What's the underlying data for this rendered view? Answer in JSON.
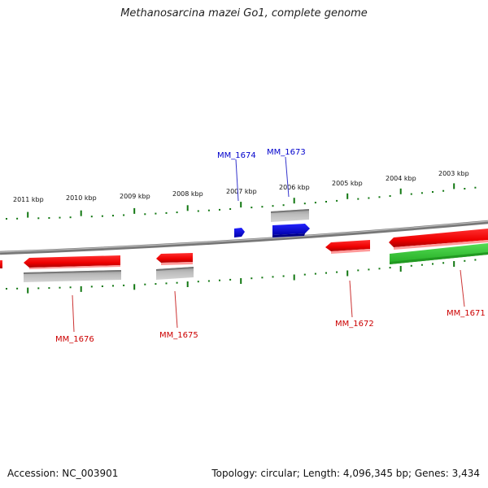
{
  "title": "Methanosarcina mazei Go1, complete genome",
  "footer": {
    "accession": "Accession: NC_003901",
    "summary": "Topology: circular; Length: 4,096,345 bp; Genes: 3,434"
  },
  "colors": {
    "forward_gene": "#ff0000",
    "selected_gene": "#0000ee",
    "rna_gene": "#33cc33",
    "pseudo_gene": "#aaaaaa",
    "backbone": "#888888",
    "ticks": "#117711",
    "label_red": "#cc0000",
    "label_blue": "#0000cc"
  },
  "scale_ticks": [
    "2011 kbp",
    "2010 kbp",
    "2009 kbp",
    "2008 kbp",
    "2007 kbp",
    "2006 kbp",
    "2005 kbp",
    "2004 kbp",
    "2003 kbp"
  ],
  "gene_labels": [
    "MM_1674",
    "MM_1673",
    "MM_1676",
    "MM_1675",
    "MM_1672",
    "MM_1671"
  ]
}
